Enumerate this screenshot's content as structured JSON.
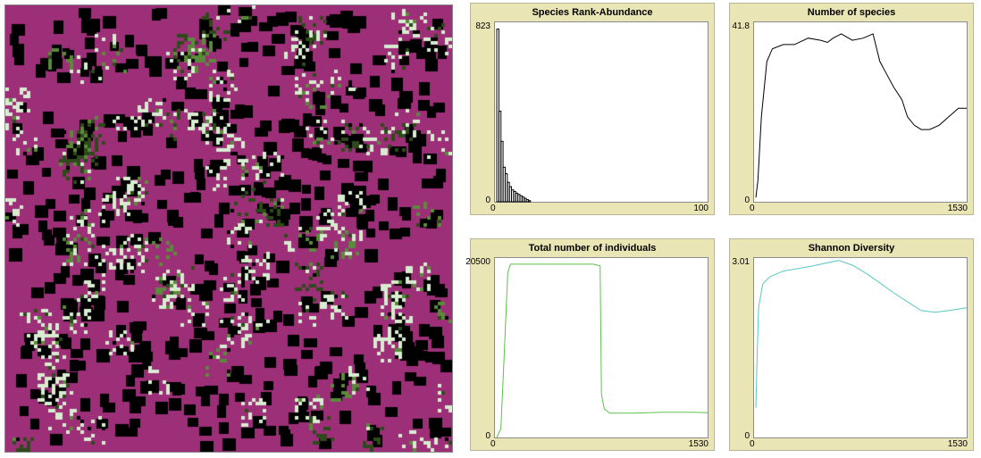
{
  "world": {
    "background_color": "#9d2f78",
    "patch_colors": [
      "#000000",
      "#2d4a1b",
      "#5a8a3a",
      "#d8ecd0"
    ]
  },
  "plots": {
    "rank_abundance": {
      "title": "Species Rank-Abundance",
      "y_max": "823",
      "y_min": "0",
      "x_min": "0",
      "x_max": "100",
      "color": "#000000"
    },
    "species_count": {
      "title": "Number of species",
      "y_max": "41.8",
      "y_min": "0",
      "x_min": "0",
      "x_max": "1530",
      "color": "#000000"
    },
    "individuals": {
      "title": "Total number of individuals",
      "y_max": "20500",
      "y_min": "0",
      "x_min": "0",
      "x_max": "1530",
      "color": "#5cc24a"
    },
    "shannon": {
      "title": "Shannon Diversity",
      "y_max": "3.01",
      "y_min": "0",
      "x_min": "0",
      "x_max": "1530",
      "color": "#5cc6c4"
    }
  },
  "chart_data": [
    {
      "type": "bar",
      "title": "Species Rank-Abundance",
      "xlim": [
        0,
        100
      ],
      "ylim": [
        0,
        823
      ],
      "x": [
        0,
        1,
        2,
        3,
        4,
        5,
        6,
        7,
        8,
        9,
        10,
        11,
        12,
        13,
        14,
        15
      ],
      "values": [
        800,
        420,
        280,
        160,
        130,
        90,
        70,
        55,
        48,
        40,
        34,
        28,
        22,
        16,
        10,
        5
      ]
    },
    {
      "type": "line",
      "title": "Number of species",
      "xlim": [
        0,
        1530
      ],
      "ylim": [
        0,
        41.8
      ],
      "x": [
        0,
        15,
        40,
        80,
        120,
        200,
        280,
        380,
        470,
        520,
        560,
        620,
        700,
        780,
        850,
        900,
        950,
        1000,
        1060,
        1100,
        1150,
        1200,
        1260,
        1330,
        1400,
        1470,
        1530
      ],
      "values": [
        1,
        5,
        20,
        33,
        36,
        37,
        37,
        38.5,
        38,
        37.5,
        38.5,
        39.5,
        38,
        38.5,
        39.5,
        33,
        30,
        27,
        24,
        20,
        18,
        17,
        17,
        18,
        20,
        22,
        22
      ]
    },
    {
      "type": "line",
      "title": "Total number of individuals",
      "xlim": [
        0,
        1530
      ],
      "ylim": [
        0,
        20500
      ],
      "x": [
        0,
        30,
        50,
        80,
        100,
        200,
        400,
        600,
        700,
        750,
        760,
        780,
        820,
        1000,
        1200,
        1400,
        1530
      ],
      "values": [
        0,
        1000,
        8000,
        19000,
        20000,
        20000,
        20000,
        20000,
        20000,
        19800,
        5000,
        3300,
        2800,
        2800,
        2900,
        2900,
        2850
      ]
    },
    {
      "type": "line",
      "title": "Shannon Diversity",
      "xlim": [
        0,
        1530
      ],
      "ylim": [
        0,
        3.01
      ],
      "x": [
        0,
        10,
        20,
        50,
        100,
        200,
        400,
        600,
        700,
        800,
        900,
        1000,
        1100,
        1200,
        1300,
        1400,
        1530
      ],
      "values": [
        0.5,
        1.4,
        2.2,
        2.6,
        2.72,
        2.82,
        2.9,
        3.0,
        2.92,
        2.78,
        2.62,
        2.45,
        2.3,
        2.15,
        2.12,
        2.15,
        2.2
      ]
    }
  ]
}
